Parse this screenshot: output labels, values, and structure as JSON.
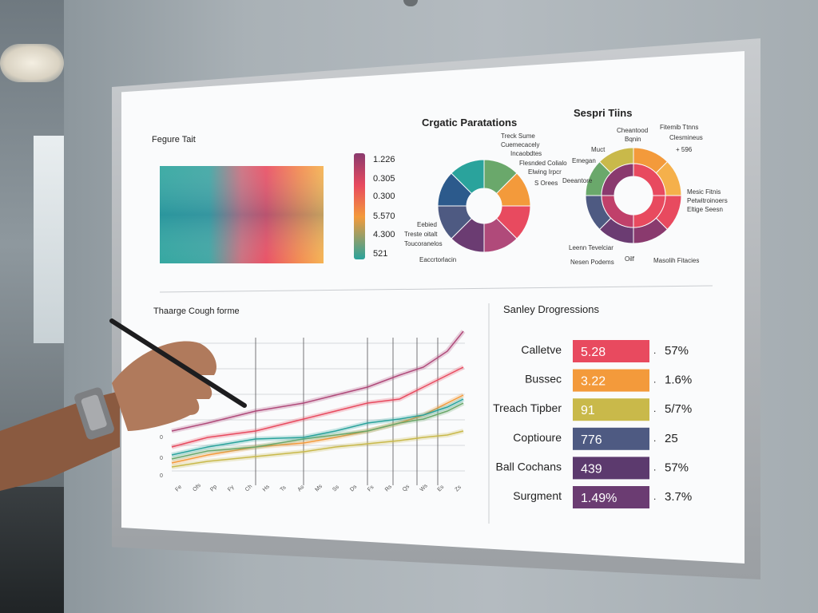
{
  "heatmap_panel": {
    "title": "Fegure Tait",
    "scale_values": [
      "1.226",
      "0.305",
      "0.300",
      "5.570",
      "4.300",
      "521"
    ]
  },
  "donut1": {
    "title": "Crgatic Paratations",
    "labels": [
      "Treck Sume",
      "Cuemecacely",
      "Incaobdtes",
      "Flesnded Colialo",
      "Elwing Irpcr",
      "S Orees",
      "Eebied",
      "Treste oitalt",
      "Toucoranelos",
      "Eaccrtorlacin"
    ]
  },
  "donut2": {
    "title": "Sespri Tiins",
    "labels": [
      "Cheantood",
      "Bqnin",
      "Fitemib Ttnns",
      "Clesmineus",
      "+ 596",
      "Muct",
      "Emegan",
      "Deeantore",
      "Mesic Fitnis",
      "Petwitroinoers",
      "Eltige Seesn",
      "Leenn Tevelciar",
      "Nesen Podems",
      "Oilf",
      "Masolih Fitacies"
    ]
  },
  "line_panel": {
    "title": "Thaarge Cough forme",
    "y_ticks": [
      "0",
      "0",
      "0"
    ],
    "x_ticks": [
      "Fe",
      "Ofs",
      "Pp",
      "Fy",
      "Ch",
      "Hs",
      "Ts",
      "As",
      "Ms",
      "Ss",
      "Ds",
      "Fs",
      "Rs",
      "Qs",
      "Ws",
      "Es",
      "Zs"
    ]
  },
  "bars_panel": {
    "title": "Sanley Drogressions",
    "rows": [
      {
        "label": "Calletve",
        "value": "5.28",
        "pct": "57%",
        "color": "#e84a5f",
        "fill": 1.0
      },
      {
        "label": "Bussec",
        "value": "3.22",
        "pct": "1.6%",
        "color": "#f39a3b",
        "fill": 1.0
      },
      {
        "label": "Treach Tipber",
        "value": "91",
        "pct": "5/7%",
        "color": "#c9b94a",
        "fill": 1.0
      },
      {
        "label": "Coptioure",
        "value": "776",
        "pct": "25",
        "color": "#4e5a82",
        "fill": 1.0
      },
      {
        "label": "Ball Cochans",
        "value": "439",
        "pct": "57%",
        "color": "#5c3a6e",
        "fill": 1.0
      },
      {
        "label": "Surgment",
        "value": "1.49%",
        "pct": "3.7%",
        "color": "#6b3c72",
        "fill": 1.0
      }
    ],
    "separator": "."
  },
  "colors": {
    "teal": "#2aa39c",
    "blue": "#2c5a8c",
    "red": "#e84a5f",
    "orange": "#f39a3b",
    "purple": "#5c3a6e",
    "green": "#6aa86b"
  }
}
